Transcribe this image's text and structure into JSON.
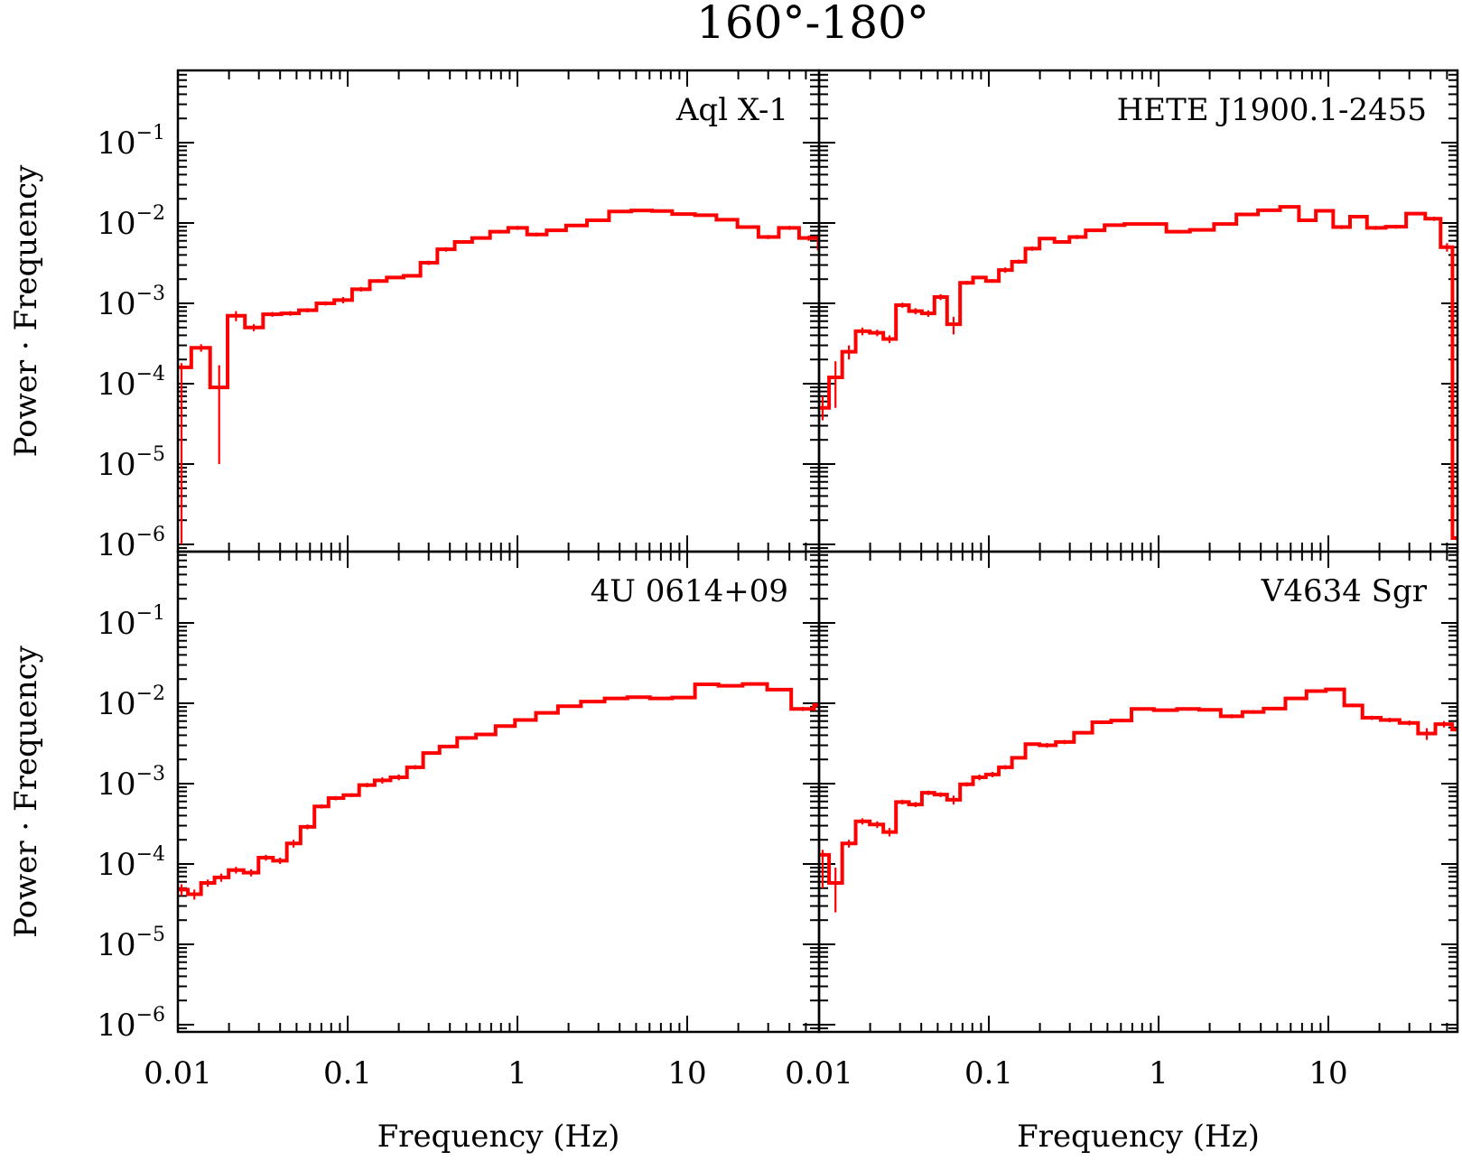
{
  "title": "160°-180°",
  "chart_data": [
    {
      "type": "line",
      "panel": "top-left",
      "label": "Aql X-1",
      "xlabel": "",
      "ylabel": "Power · Frequency",
      "xscale": "log",
      "yscale": "log",
      "xlim": [
        0.01,
        80
      ],
      "ylim": [
        1e-06,
        1
      ],
      "x": [
        0.0105,
        0.0137,
        0.0175,
        0.022,
        0.028,
        0.036,
        0.046,
        0.058,
        0.074,
        0.094,
        0.12,
        0.152,
        0.19,
        0.24,
        0.3,
        0.38,
        0.48,
        0.61,
        0.78,
        1.0,
        1.3,
        1.7,
        2.2,
        3.0,
        4.0,
        5.5,
        7.0,
        9.5,
        13.0,
        17.0,
        23.0,
        30.0,
        40.0,
        52.0,
        68.0
      ],
      "y": [
        0.00016,
        0.00028,
        9e-05,
        0.0007,
        0.0005,
        0.00073,
        0.00075,
        0.00082,
        0.001,
        0.0011,
        0.0015,
        0.0019,
        0.0021,
        0.0022,
        0.0032,
        0.0047,
        0.0058,
        0.0065,
        0.0078,
        0.0087,
        0.0072,
        0.0081,
        0.0093,
        0.0108,
        0.0139,
        0.0143,
        0.0141,
        0.0129,
        0.0125,
        0.011,
        0.0089,
        0.0067,
        0.0087,
        0.0065,
        0.0048
      ],
      "ylow": [
        1e-06,
        0.00025,
        1e-05,
        0.0006,
        0.00045,
        0.00068,
        0.0007,
        0.00077,
        0.00094,
        0.001,
        0.0014,
        0.0018,
        0.002,
        0.0021,
        0.003,
        0.0044,
        0.0055,
        0.0062,
        0.0074,
        0.0082,
        0.0068,
        0.0077,
        0.0089,
        0.0103,
        0.0134,
        0.0138,
        0.0136,
        0.0124,
        0.012,
        0.0105,
        0.0085,
        0.0063,
        0.0082,
        0.006,
        0.0043
      ],
      "yhigh": [
        0.00018,
        0.00031,
        0.00017,
        0.0008,
        0.00055,
        0.00078,
        0.0008,
        0.00087,
        0.00106,
        0.0012,
        0.0016,
        0.002,
        0.0022,
        0.0023,
        0.0034,
        0.005,
        0.0061,
        0.0068,
        0.0082,
        0.0092,
        0.0076,
        0.0085,
        0.0097,
        0.0113,
        0.0144,
        0.0148,
        0.0146,
        0.0134,
        0.013,
        0.0115,
        0.0093,
        0.0071,
        0.0092,
        0.007,
        0.0053
      ]
    },
    {
      "type": "line",
      "panel": "top-right",
      "label": "HETE J1900.1-2455",
      "xlabel": "",
      "ylabel": "",
      "xscale": "log",
      "yscale": "log",
      "xlim": [
        0.01,
        80
      ],
      "ylim": [
        1e-06,
        1
      ],
      "x": [
        0.0105,
        0.0125,
        0.015,
        0.018,
        0.022,
        0.026,
        0.031,
        0.037,
        0.044,
        0.052,
        0.062,
        0.074,
        0.088,
        0.105,
        0.125,
        0.15,
        0.18,
        0.22,
        0.27,
        0.33,
        0.42,
        0.55,
        0.72,
        0.95,
        1.3,
        1.8,
        2.5,
        3.3,
        4.5,
        6.0,
        7.5,
        9.5,
        12.0,
        15.0,
        19.0,
        25.0,
        33.0,
        42.0,
        50.0,
        58.0,
        68.0
      ],
      "y": [
        5e-05,
        0.00012,
        0.00025,
        0.00045,
        0.00043,
        0.00036,
        0.00095,
        0.0008,
        0.00075,
        0.0012,
        0.00055,
        0.0018,
        0.0021,
        0.0019,
        0.0026,
        0.0033,
        0.0048,
        0.0064,
        0.0058,
        0.0067,
        0.0081,
        0.0094,
        0.0097,
        0.0097,
        0.0078,
        0.0082,
        0.0097,
        0.0128,
        0.0144,
        0.0159,
        0.0108,
        0.0142,
        0.0089,
        0.012,
        0.0087,
        0.009,
        0.0131,
        0.0113,
        0.005,
        1.2e-06,
        1.2e-06
      ],
      "ylow": [
        3.5e-05,
        5e-05,
        0.0002,
        0.0004,
        0.00039,
        0.00032,
        0.00088,
        0.00073,
        0.00068,
        0.0011,
        0.00041,
        0.0017,
        0.002,
        0.0018,
        0.0024,
        0.0031,
        0.0045,
        0.0061,
        0.0055,
        0.0063,
        0.0077,
        0.009,
        0.0093,
        0.0093,
        0.0074,
        0.0078,
        0.0093,
        0.0123,
        0.0139,
        0.0153,
        0.0103,
        0.0136,
        0.0084,
        0.0114,
        0.0082,
        0.0085,
        0.0125,
        0.0106,
        0.0044,
        1e-06,
        1e-06
      ],
      "yhigh": [
        7e-05,
        0.00019,
        0.0003,
        0.0005,
        0.00047,
        0.0004,
        0.00102,
        0.00087,
        0.00082,
        0.0013,
        0.00068,
        0.0019,
        0.0022,
        0.002,
        0.0028,
        0.0035,
        0.0051,
        0.0067,
        0.0061,
        0.0071,
        0.0085,
        0.0098,
        0.0101,
        0.0101,
        0.0082,
        0.0086,
        0.0101,
        0.0133,
        0.0149,
        0.0165,
        0.0113,
        0.0148,
        0.0094,
        0.0126,
        0.0092,
        0.0095,
        0.0137,
        0.012,
        0.0056,
        0.0016,
        0.0016
      ]
    },
    {
      "type": "line",
      "panel": "bottom-left",
      "label": "4U 0614+09",
      "xlabel": "Frequency (Hz)",
      "ylabel": "Power · Frequency",
      "xscale": "log",
      "yscale": "log",
      "xlim": [
        0.01,
        80
      ],
      "ylim": [
        1e-06,
        1
      ],
      "x": [
        0.0105,
        0.0125,
        0.015,
        0.018,
        0.022,
        0.027,
        0.033,
        0.04,
        0.048,
        0.058,
        0.07,
        0.085,
        0.105,
        0.13,
        0.16,
        0.2,
        0.25,
        0.31,
        0.39,
        0.5,
        0.65,
        0.85,
        1.1,
        1.5,
        2.0,
        2.8,
        3.8,
        5.2,
        7.0,
        9.5,
        13.0,
        18.0,
        25.0,
        35.0,
        48.0,
        65.0
      ],
      "y": [
        4.8e-05,
        4.2e-05,
        5.8e-05,
        6.8e-05,
        8.4e-05,
        7.8e-05,
        0.00012,
        0.00011,
        0.00018,
        0.00029,
        0.00052,
        0.00066,
        0.00072,
        0.00096,
        0.0011,
        0.0012,
        0.0016,
        0.0024,
        0.0029,
        0.0037,
        0.0041,
        0.0052,
        0.0062,
        0.0076,
        0.0092,
        0.0105,
        0.0115,
        0.0119,
        0.0115,
        0.0118,
        0.0172,
        0.0165,
        0.0174,
        0.0148,
        0.0085,
        0.0095
      ],
      "ylow": [
        4e-05,
        3.6e-05,
        5.2e-05,
        6e-05,
        7.6e-05,
        7e-05,
        0.00011,
        0.0001,
        0.00016,
        0.00027,
        0.00049,
        0.00062,
        0.00068,
        0.0009,
        0.001,
        0.0011,
        0.0015,
        0.0023,
        0.0028,
        0.0035,
        0.0039,
        0.005,
        0.0059,
        0.0073,
        0.0088,
        0.0101,
        0.0111,
        0.0114,
        0.011,
        0.0113,
        0.0166,
        0.0158,
        0.0167,
        0.0142,
        0.008,
        0.009
      ],
      "yhigh": [
        5.6e-05,
        4.8e-05,
        6.4e-05,
        7.6e-05,
        9.2e-05,
        8.6e-05,
        0.00013,
        0.00012,
        0.0002,
        0.00031,
        0.00055,
        0.0007,
        0.00076,
        0.00102,
        0.0012,
        0.0013,
        0.0017,
        0.0025,
        0.003,
        0.0039,
        0.0043,
        0.0054,
        0.0065,
        0.0079,
        0.0096,
        0.0109,
        0.0119,
        0.0124,
        0.012,
        0.0123,
        0.0178,
        0.0172,
        0.0181,
        0.0154,
        0.009,
        0.01
      ]
    },
    {
      "type": "line",
      "panel": "bottom-right",
      "label": "V4634 Sgr",
      "xlabel": "Frequency (Hz)",
      "ylabel": "",
      "xscale": "log",
      "yscale": "log",
      "xlim": [
        0.01,
        80
      ],
      "ylim": [
        1e-06,
        1
      ],
      "x": [
        0.0105,
        0.0125,
        0.015,
        0.018,
        0.022,
        0.026,
        0.031,
        0.037,
        0.044,
        0.052,
        0.062,
        0.074,
        0.088,
        0.105,
        0.125,
        0.15,
        0.18,
        0.22,
        0.28,
        0.36,
        0.46,
        0.6,
        0.8,
        1.1,
        1.5,
        2.0,
        2.7,
        3.6,
        4.8,
        6.5,
        8.5,
        11.0,
        14.0,
        18.0,
        23.0,
        30.0,
        38.0,
        48.0,
        60.0,
        72.0
      ],
      "y": [
        0.00013,
        5.8e-05,
        0.00018,
        0.00034,
        0.00031,
        0.00025,
        0.00059,
        0.00055,
        0.00077,
        0.00073,
        0.00063,
        0.00098,
        0.0012,
        0.0013,
        0.0016,
        0.0021,
        0.0031,
        0.003,
        0.0033,
        0.0043,
        0.0058,
        0.0061,
        0.0085,
        0.0082,
        0.0085,
        0.0083,
        0.0069,
        0.0078,
        0.0086,
        0.0115,
        0.0142,
        0.0149,
        0.0094,
        0.0066,
        0.0062,
        0.0057,
        0.0042,
        0.0055,
        0.0047,
        0.004
      ],
      "ylow": [
        5e-05,
        2.5e-05,
        0.00016,
        0.00031,
        0.00028,
        0.00022,
        0.00055,
        0.00051,
        0.00072,
        0.00068,
        0.00055,
        0.00092,
        0.0011,
        0.0012,
        0.0015,
        0.002,
        0.003,
        0.0028,
        0.0031,
        0.0041,
        0.0055,
        0.0058,
        0.0081,
        0.0078,
        0.0081,
        0.0079,
        0.0065,
        0.0074,
        0.0082,
        0.011,
        0.0136,
        0.0143,
        0.0089,
        0.0062,
        0.0058,
        0.0053,
        0.0035,
        0.005,
        0.0042,
        0.0036
      ],
      "yhigh": [
        0.00015,
        9e-05,
        0.0002,
        0.00037,
        0.00034,
        0.00028,
        0.00063,
        0.00059,
        0.00082,
        0.00078,
        0.00071,
        0.00104,
        0.0013,
        0.0014,
        0.0017,
        0.0022,
        0.0032,
        0.0032,
        0.0035,
        0.0045,
        0.0061,
        0.0064,
        0.0089,
        0.0086,
        0.0089,
        0.0087,
        0.0073,
        0.0082,
        0.009,
        0.012,
        0.0148,
        0.0155,
        0.0099,
        0.007,
        0.0066,
        0.0061,
        0.0049,
        0.006,
        0.0052,
        0.0044
      ]
    }
  ],
  "axes": {
    "xticks": [
      {
        "value": 0.01,
        "label": "0.01"
      },
      {
        "value": 0.1,
        "label": "0.1"
      },
      {
        "value": 1,
        "label": "1"
      },
      {
        "value": 10,
        "label": "10"
      }
    ],
    "yticks": [
      {
        "exp": -6,
        "base": "10",
        "sup": "−6"
      },
      {
        "exp": -5,
        "base": "10",
        "sup": "−5"
      },
      {
        "exp": -4,
        "base": "10",
        "sup": "−4"
      },
      {
        "exp": -3,
        "base": "10",
        "sup": "−3"
      },
      {
        "exp": -2,
        "base": "10",
        "sup": "−2"
      },
      {
        "exp": -1,
        "base": "10",
        "sup": "−1"
      }
    ]
  },
  "colors": {
    "series": "#ff0000",
    "axes": "#000000"
  }
}
